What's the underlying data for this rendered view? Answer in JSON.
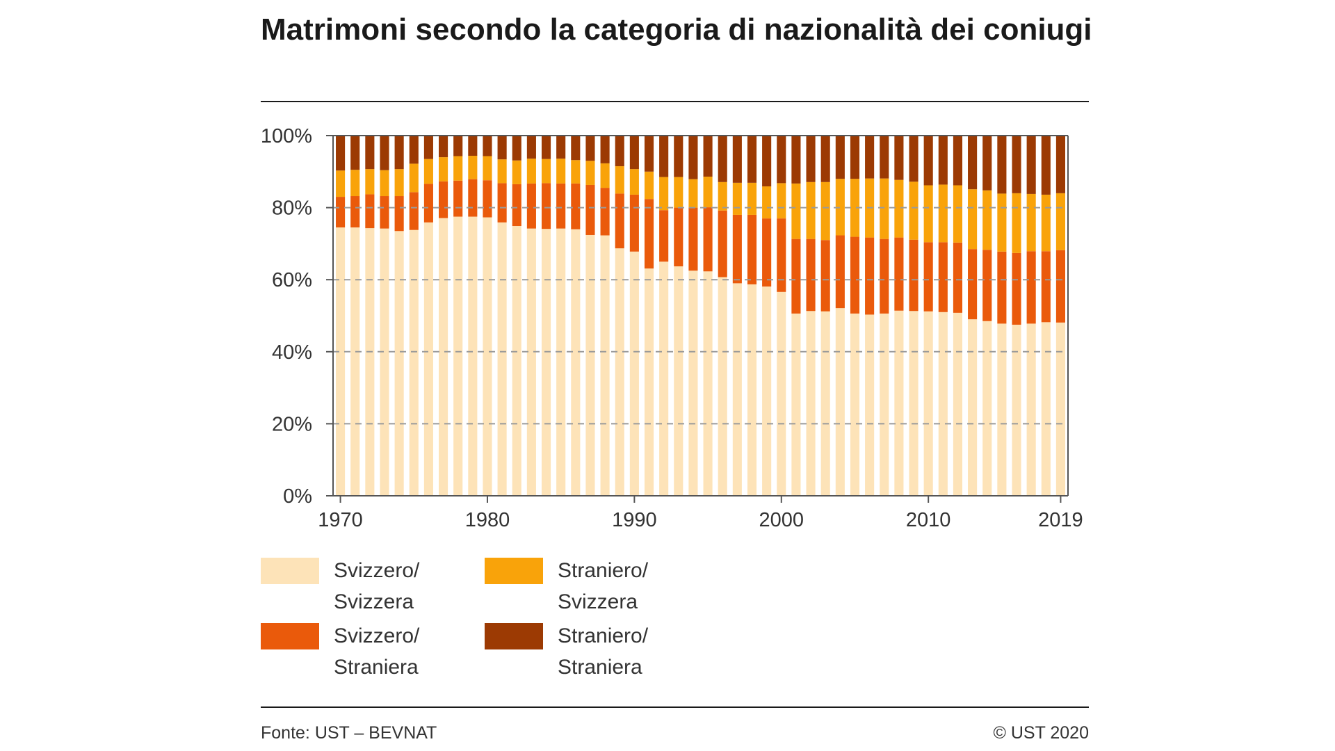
{
  "title": "Matrimoni secondo la categoria di nazionalità dei coniugi",
  "footer": {
    "source": "Fonte: UST – BEVNAT",
    "copyright": "© UST 2020"
  },
  "legend": [
    {
      "label": "Svizzero/ Svizzera",
      "color": "#fde3b8"
    },
    {
      "label": "Straniero/ Svizzera",
      "color": "#f9a30a"
    },
    {
      "label": "Svizzero/ Straniera",
      "color": "#ea5a0b"
    },
    {
      "label": "Straniero/ Straniera",
      "color": "#9c3a03"
    }
  ],
  "chart_data": {
    "type": "bar",
    "stacked": true,
    "categories": [
      1970,
      1971,
      1972,
      1973,
      1974,
      1975,
      1976,
      1977,
      1978,
      1979,
      1980,
      1981,
      1982,
      1983,
      1984,
      1985,
      1986,
      1987,
      1988,
      1989,
      1990,
      1991,
      1992,
      1993,
      1994,
      1995,
      1996,
      1997,
      1998,
      1999,
      2000,
      2001,
      2002,
      2003,
      2004,
      2005,
      2006,
      2007,
      2008,
      2009,
      2010,
      2011,
      2012,
      2013,
      2014,
      2015,
      2016,
      2017,
      2018,
      2019
    ],
    "x_tick_labels": [
      "1970",
      "1980",
      "1990",
      "2000",
      "2010",
      "2019"
    ],
    "y_tick_labels": [
      "0%",
      "20%",
      "40%",
      "60%",
      "80%",
      "100%"
    ],
    "ylim": [
      0,
      100
    ],
    "grid": true,
    "series": [
      {
        "name": "Svizzero/ Svizzera",
        "color": "#fde3b8",
        "values": [
          74.5,
          74.5,
          74.3,
          74.2,
          73.5,
          73.8,
          75.9,
          77.1,
          77.5,
          77.5,
          77.3,
          75.9,
          74.9,
          74.2,
          74.1,
          74.2,
          74.0,
          72.4,
          72.3,
          68.7,
          67.8,
          63.1,
          65.0,
          63.7,
          62.5,
          62.3,
          60.7,
          59.0,
          58.7,
          58.1,
          56.6,
          50.6,
          51.3,
          51.2,
          52.1,
          50.6,
          50.3,
          50.6,
          51.4,
          51.3,
          51.2,
          51.0,
          50.8,
          49.0,
          48.5,
          47.8,
          47.5,
          47.8,
          48.2,
          48.1
        ]
      },
      {
        "name": "Svizzero/ Straniera",
        "color": "#ea5a0b",
        "values": [
          8.5,
          8.7,
          9.4,
          9.0,
          9.7,
          10.5,
          10.7,
          10.2,
          10.0,
          10.4,
          10.3,
          10.9,
          11.6,
          12.5,
          12.7,
          12.5,
          12.7,
          13.9,
          13.2,
          15.2,
          15.8,
          19.3,
          14.3,
          16.3,
          17.5,
          17.8,
          18.5,
          19.0,
          19.3,
          18.9,
          20.4,
          20.7,
          20.0,
          19.8,
          20.2,
          21.3,
          21.4,
          20.7,
          20.3,
          19.8,
          19.2,
          19.4,
          19.5,
          19.5,
          19.8,
          20.0,
          19.9,
          20.1,
          19.7,
          20.1
        ]
      },
      {
        "name": "Straniero/ Svizzera",
        "color": "#f9a30a",
        "values": [
          7.3,
          7.3,
          7.0,
          7.2,
          7.5,
          7.9,
          6.9,
          6.7,
          6.8,
          6.5,
          6.7,
          6.6,
          6.6,
          6.9,
          6.7,
          6.9,
          6.5,
          6.7,
          6.8,
          7.6,
          7.1,
          7.6,
          9.2,
          8.5,
          7.9,
          8.5,
          7.9,
          8.9,
          8.9,
          8.9,
          9.8,
          15.4,
          15.8,
          16.1,
          15.7,
          16.1,
          16.4,
          16.8,
          16.0,
          16.1,
          15.8,
          16.0,
          15.9,
          16.6,
          16.5,
          16.1,
          16.6,
          15.9,
          15.7,
          15.8
        ]
      },
      {
        "name": "Straniero/ Straniera",
        "color": "#9c3a03",
        "values": [
          9.7,
          9.5,
          9.3,
          9.6,
          9.3,
          7.8,
          6.5,
          6.0,
          5.7,
          5.6,
          5.7,
          6.6,
          6.9,
          6.4,
          6.5,
          6.4,
          6.8,
          7.0,
          7.7,
          8.5,
          9.3,
          10.0,
          11.5,
          11.5,
          12.1,
          11.4,
          12.9,
          13.1,
          13.1,
          14.1,
          13.2,
          13.3,
          12.9,
          12.9,
          12.0,
          12.0,
          11.9,
          11.9,
          12.3,
          12.8,
          13.8,
          13.6,
          13.8,
          14.9,
          15.2,
          16.1,
          16.0,
          16.2,
          16.4,
          16.0
        ]
      }
    ]
  }
}
